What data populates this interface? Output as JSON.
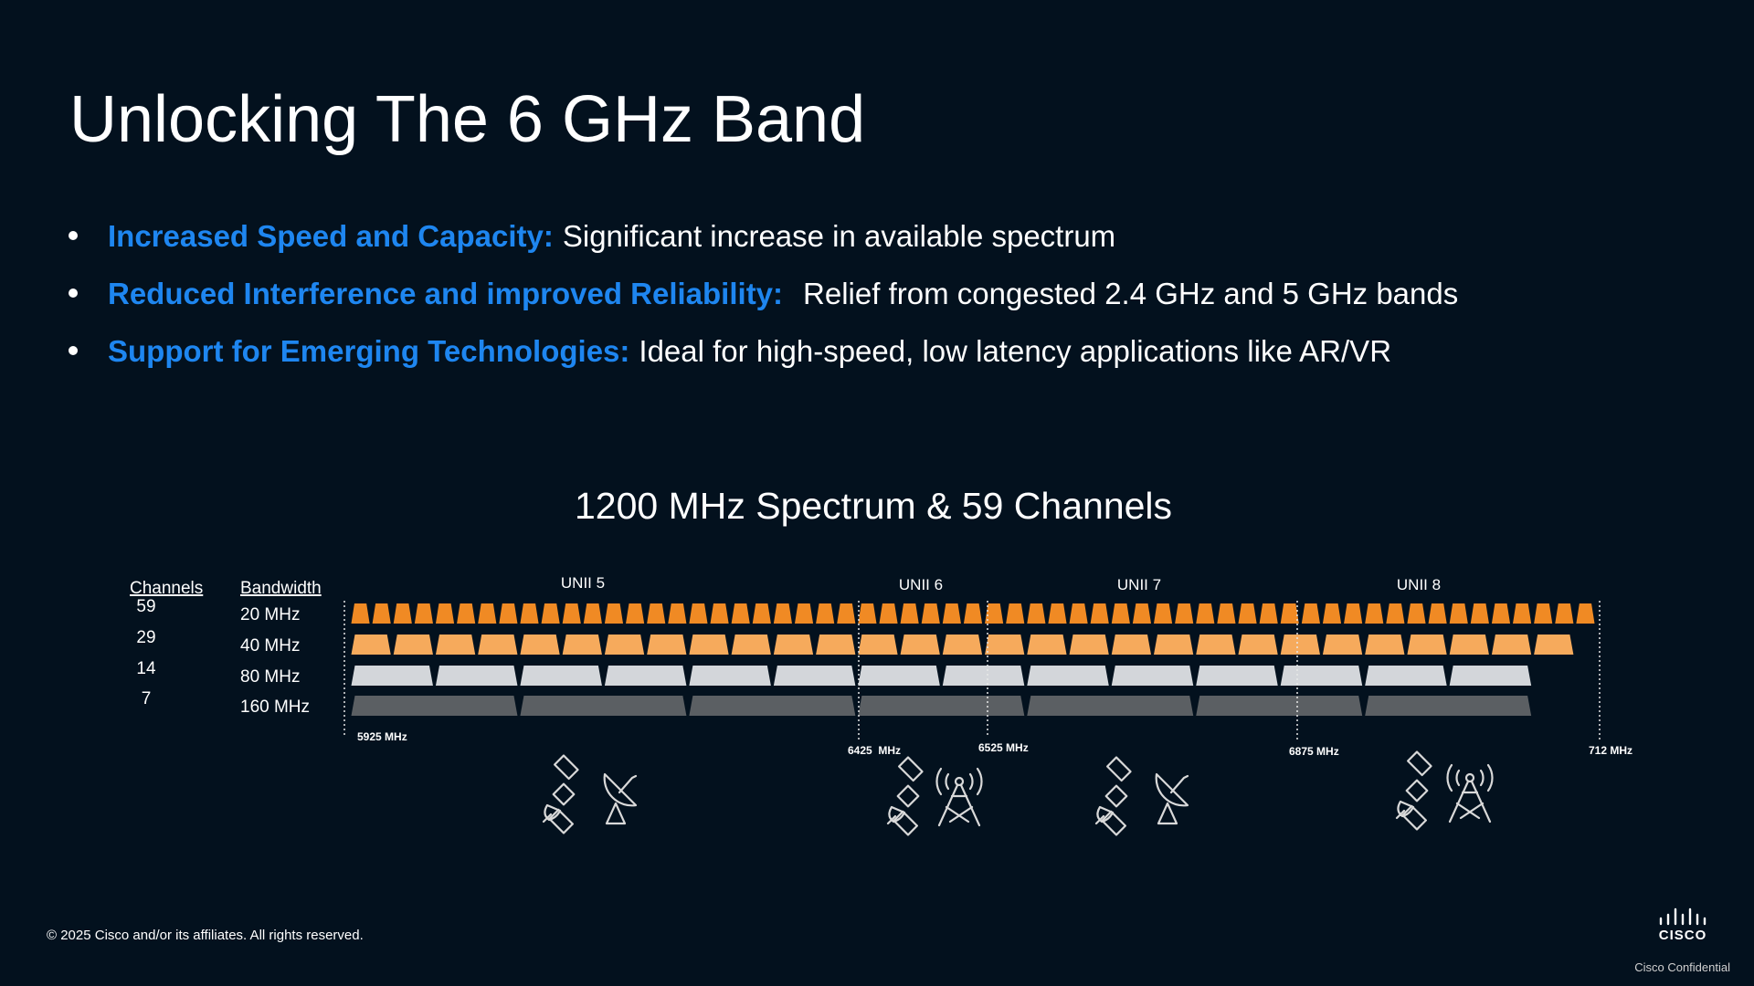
{
  "header": {
    "title": "Unlocking The 6 GHz Band"
  },
  "bullets": [
    {
      "label": "Increased Speed and Capacity:",
      "text": "Significant increase in available spectrum"
    },
    {
      "label": "Reduced Interference and improved Reliability:",
      "text": "Relief from congested 2.4 GHz and 5 GHz bands"
    },
    {
      "label": "Support for Emerging Technologies:",
      "text": "Ideal for high-speed, low latency applications like AR/VR"
    }
  ],
  "diagram": {
    "title": "1200 MHz Spectrum & 59 Channels",
    "headers": {
      "channels": "Channels",
      "bandwidth": "Bandwidth"
    },
    "rows": [
      {
        "channels": "59",
        "bandwidth": "20 MHz"
      },
      {
        "channels": "29",
        "bandwidth": "40 MHz"
      },
      {
        "channels": "14",
        "bandwidth": "80 MHz"
      },
      {
        "channels": "7",
        "bandwidth": "160 MHz"
      }
    ],
    "bands": [
      "UNII 5",
      "UNII 6",
      "UNII 7",
      "UNII 8"
    ],
    "frequencies": [
      "5925 MHz",
      "6425  MHz",
      "6525 MHz",
      "6875 MHz",
      "712 MHz"
    ]
  },
  "footer": {
    "copyright": "© 2025 Cisco and/or its affiliates. All rights reserved.",
    "logo": "CISCO",
    "confidential": "Cisco Confidential"
  }
}
